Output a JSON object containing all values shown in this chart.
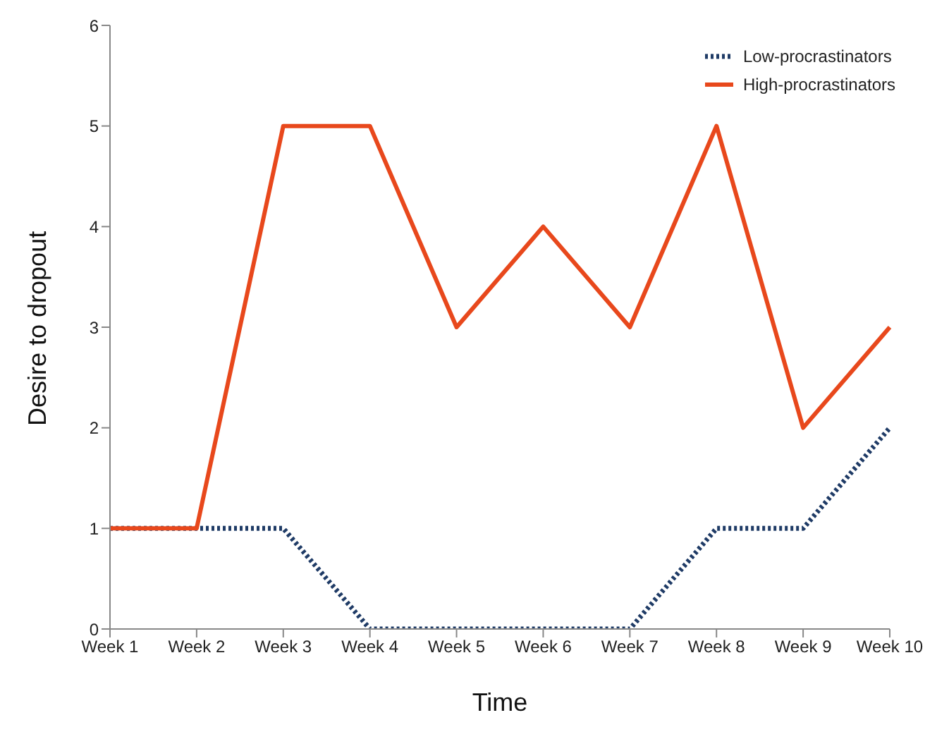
{
  "chart_data": {
    "type": "line",
    "xlabel": "Time",
    "ylabel": "Desire to dropout",
    "categories": [
      "Week 1",
      "Week 2",
      "Week 3",
      "Week 4",
      "Week 5",
      "Week 6",
      "Week 7",
      "Week 8",
      "Week 9",
      "Week 10"
    ],
    "series": [
      {
        "name": "Low-procrastinators",
        "color": "#1f3b66",
        "line_style": "dotted",
        "values": [
          1,
          1,
          1,
          0,
          0,
          0,
          0,
          1,
          1,
          2
        ]
      },
      {
        "name": "High-procrastinators",
        "color": "#e8481c",
        "line_style": "solid",
        "values": [
          1,
          1,
          5,
          5,
          3,
          4,
          3,
          5,
          2,
          3
        ]
      }
    ],
    "ylim": [
      0,
      6
    ],
    "yticks": [
      0,
      1,
      2,
      3,
      4,
      5,
      6
    ],
    "grid": false,
    "legend": "top right",
    "marker": "none"
  }
}
